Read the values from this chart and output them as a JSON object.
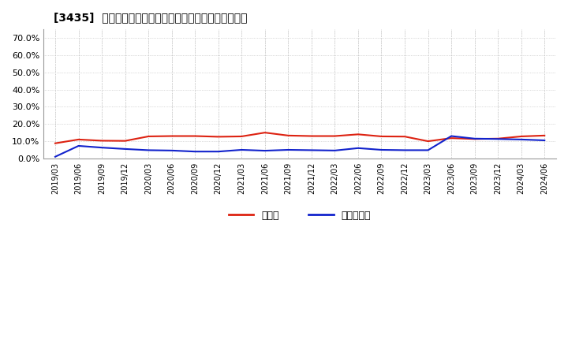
{
  "title": "[3435]  現預金、有利子負債の総資産に対する比率の推移",
  "x_labels": [
    "2019/03",
    "2019/06",
    "2019/09",
    "2019/12",
    "2020/03",
    "2020/06",
    "2020/09",
    "2020/12",
    "2021/03",
    "2021/06",
    "2021/09",
    "2021/12",
    "2022/03",
    "2022/06",
    "2022/09",
    "2022/12",
    "2023/03",
    "2023/06",
    "2023/09",
    "2023/12",
    "2024/03",
    "2024/06"
  ],
  "cash": [
    0.088,
    0.11,
    0.103,
    0.102,
    0.128,
    0.13,
    0.13,
    0.126,
    0.128,
    0.15,
    0.133,
    0.13,
    0.13,
    0.14,
    0.128,
    0.127,
    0.1,
    0.118,
    0.113,
    0.115,
    0.128,
    0.133
  ],
  "debt": [
    0.01,
    0.073,
    0.063,
    0.055,
    0.048,
    0.046,
    0.04,
    0.04,
    0.05,
    0.045,
    0.05,
    0.048,
    0.046,
    0.06,
    0.05,
    0.048,
    0.048,
    0.13,
    0.115,
    0.113,
    0.11,
    0.105
  ],
  "cash_color": "#dd2211",
  "debt_color": "#1122cc",
  "background_color": "#ffffff",
  "grid_color": "#bbbbbb",
  "ylim": [
    0.0,
    0.75
  ],
  "yticks": [
    0.0,
    0.1,
    0.2,
    0.3,
    0.4,
    0.5,
    0.6,
    0.7
  ],
  "legend_cash": "現預金",
  "legend_debt": "有利子負債"
}
